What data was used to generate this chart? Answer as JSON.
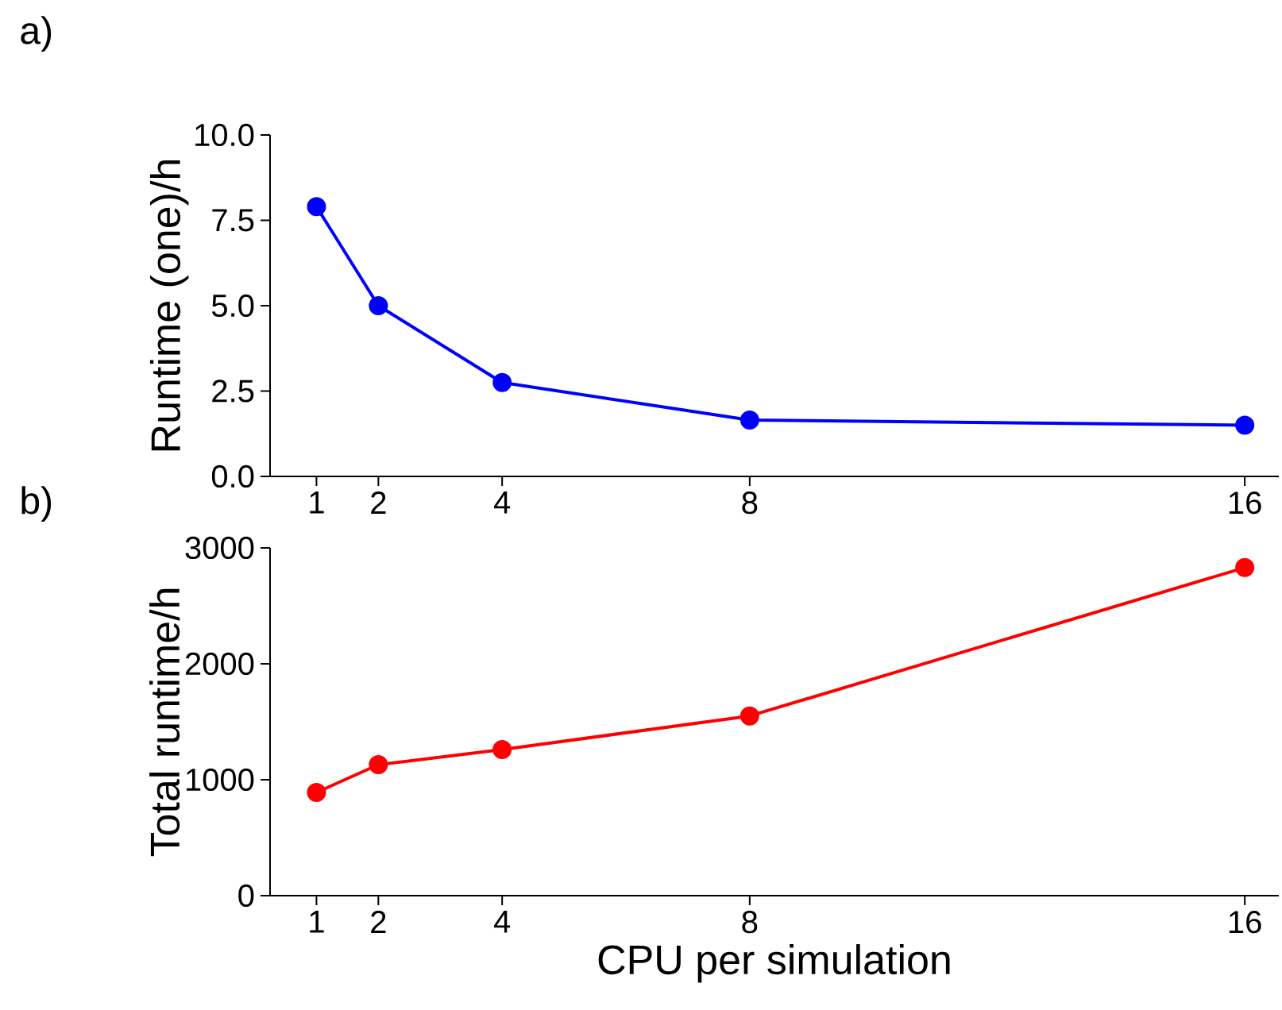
{
  "chart_data": [
    {
      "type": "line",
      "annotations": [
        "a)"
      ],
      "ylabel": "Runtime (one)/h",
      "x": [
        1,
        2,
        4,
        8,
        16
      ],
      "marker": "circle",
      "series": [
        {
          "color": "#0000ff",
          "values": [
            7.9,
            5.0,
            2.75,
            1.65,
            1.5
          ]
        }
      ],
      "xlim": [
        0.25,
        16.55
      ],
      "ylim": [
        0,
        10
      ],
      "xticks": [
        1,
        2,
        4,
        8,
        16
      ],
      "yticks": [
        {
          "value": 0,
          "label": "0.0"
        },
        {
          "value": 2.5,
          "label": "2.5"
        },
        {
          "value": 5,
          "label": "5.0"
        },
        {
          "value": 7.5,
          "label": "7.5"
        },
        {
          "value": 10,
          "label": "10.0"
        }
      ]
    },
    {
      "type": "line",
      "annotations": [
        "b)"
      ],
      "ylabel": "Total runtime/h",
      "xlabel": "CPU per simulation",
      "x": [
        1,
        2,
        4,
        8,
        16
      ],
      "marker": "circle",
      "series": [
        {
          "color": "#ff0000",
          "values": [
            890,
            1130,
            1260,
            1550,
            2830
          ]
        }
      ],
      "xlim": [
        0.25,
        16.55
      ],
      "ylim": [
        0,
        3000
      ],
      "xticks": [
        1,
        2,
        4,
        8,
        16
      ],
      "yticks": [
        0,
        1000,
        2000,
        3000
      ]
    }
  ]
}
